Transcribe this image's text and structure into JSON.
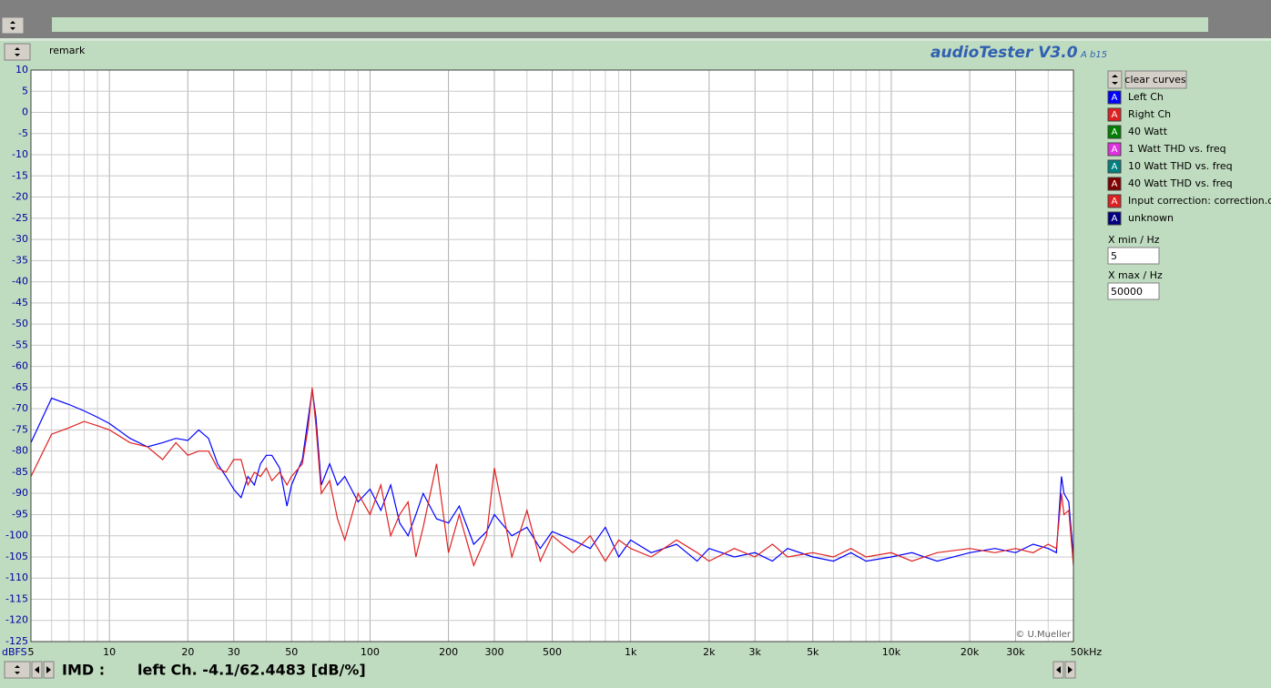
{
  "remark": "remark",
  "app_title": "audioTester V3.0",
  "app_build": "A b15",
  "legend_icon": "A",
  "clear_button": "clear curves",
  "other_curves": [
    {
      "name": "40 Watt",
      "color": "#008000"
    },
    {
      "name": "1 Watt THD vs. freq",
      "color": "#e030e0"
    },
    {
      "name": "10 Watt THD vs. freq",
      "color": "#008080"
    },
    {
      "name": "40 Watt THD vs. freq",
      "color": "#800000"
    },
    {
      "name": "Input correction: correction.cor",
      "color": "#e02020"
    },
    {
      "name": "unknown",
      "color": "#000080"
    }
  ],
  "xmin_label": "X min / Hz",
  "xmax_label": "X max / Hz",
  "status": {
    "label": "IMD :",
    "text": "left Ch. -4.1/62.4483 [dB/%]"
  },
  "chart_data": {
    "type": "line",
    "y_unit": "dBFS",
    "credit": "© U.Mueller",
    "log_x": true,
    "grid": true,
    "xlim": [
      5,
      50000
    ],
    "ylim": [
      -125,
      10
    ],
    "xticks": [
      5,
      10,
      20,
      30,
      50,
      100,
      200,
      300,
      500,
      {
        "value": 1000,
        "label": "1k"
      },
      {
        "value": 2000,
        "label": "2k"
      },
      {
        "value": 3000,
        "label": "3k"
      },
      {
        "value": 5000,
        "label": "5k"
      },
      {
        "value": 10000,
        "label": "10k"
      },
      {
        "value": 20000,
        "label": "20k"
      },
      {
        "value": 30000,
        "label": "30k"
      },
      {
        "value": 50000,
        "label": "50kHz"
      }
    ],
    "minor_grid_x": [
      6,
      7,
      8,
      9,
      40,
      60,
      70,
      80,
      90,
      400,
      600,
      700,
      800,
      900,
      4000,
      6000,
      7000,
      8000,
      9000,
      40000
    ],
    "yticks": [
      10,
      5,
      0,
      -5,
      -10,
      -15,
      -20,
      -25,
      -30,
      -35,
      -40,
      -45,
      -50,
      -55,
      -60,
      -65,
      -70,
      -75,
      -80,
      -85,
      -90,
      -95,
      -100,
      -105,
      -110,
      -115,
      -120,
      -125
    ],
    "x": [
      5,
      6,
      7,
      8,
      9,
      10,
      12,
      14,
      16,
      18,
      20,
      22,
      24,
      26,
      28,
      30,
      32,
      34,
      36,
      38,
      40,
      42,
      45,
      48,
      50,
      55,
      58,
      60,
      62,
      65,
      70,
      75,
      80,
      90,
      100,
      110,
      120,
      130,
      140,
      150,
      160,
      180,
      200,
      220,
      250,
      280,
      300,
      350,
      400,
      450,
      500,
      600,
      700,
      800,
      900,
      1000,
      1200,
      1500,
      1800,
      2000,
      2500,
      3000,
      3500,
      4000,
      5000,
      6000,
      7000,
      8000,
      10000,
      12000,
      15000,
      20000,
      25000,
      30000,
      35000,
      40000,
      43000,
      45000,
      46000,
      48000,
      50000
    ],
    "series": [
      {
        "name": "Left Ch",
        "color": "#0000ff",
        "values": [
          -78,
          -67.5,
          -69,
          -70.5,
          -72,
          -73.5,
          -77,
          -79,
          -78,
          -77,
          -77.5,
          -75,
          -77,
          -83,
          -86,
          -89,
          -91,
          -86,
          -88,
          -83,
          -81,
          -81,
          -84,
          -93,
          -88,
          -82,
          -72,
          -65.5,
          -72,
          -88,
          -83,
          -88,
          -86,
          -92,
          -89,
          -94,
          -88,
          -97,
          -100,
          -95,
          -90,
          -96,
          -97,
          -93,
          -102,
          -99,
          -95,
          -100,
          -98,
          -103,
          -99,
          -101,
          -103,
          -98,
          -105,
          -101,
          -104,
          -102,
          -106,
          -103,
          -105,
          -104,
          -106,
          -103,
          -105,
          -106,
          -104,
          -106,
          -105,
          -104,
          -106,
          -104,
          -103,
          -104,
          -102,
          -103,
          -104,
          -86,
          -90,
          -92,
          -105
        ]
      },
      {
        "name": "Right Ch",
        "color": "#e02020",
        "values": [
          -86,
          -76,
          -74.5,
          -73,
          -74,
          -75,
          -78,
          -79,
          -82,
          -78,
          -81,
          -80,
          -80,
          -84,
          -85,
          -82,
          -82,
          -88,
          -85,
          -86,
          -84,
          -87,
          -85,
          -88,
          -86,
          -83,
          -74,
          -65,
          -74,
          -90,
          -87,
          -96,
          -101,
          -90,
          -95,
          -88,
          -100,
          -95,
          -92,
          -105,
          -98,
          -83,
          -104,
          -95,
          -107,
          -100,
          -84,
          -105,
          -94,
          -106,
          -100,
          -104,
          -100,
          -106,
          -101,
          -103,
          -105,
          -101,
          -104,
          -106,
          -103,
          -105,
          -102,
          -105,
          -104,
          -105,
          -103,
          -105,
          -104,
          -106,
          -104,
          -103,
          -104,
          -103,
          -104,
          -102,
          -103,
          -90,
          -95,
          -94,
          -107
        ]
      }
    ]
  }
}
